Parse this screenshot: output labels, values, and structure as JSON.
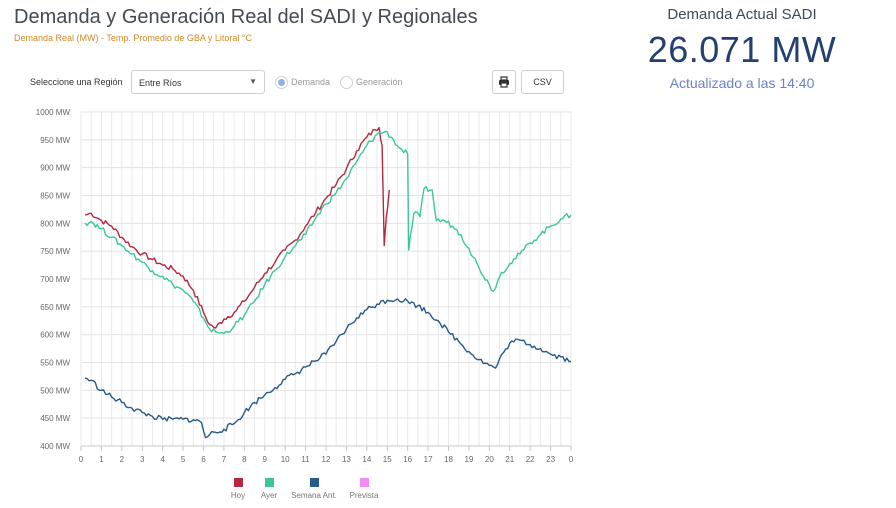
{
  "header": {
    "title": "Demanda y Generación Real del SADI y Regionales",
    "subtitle": "Demanda Real (MW) - Temp. Promedio de GBA y Litoral °C"
  },
  "current": {
    "label": "Demanda Actual SADI",
    "value": "26.071 MW",
    "updated": "Actualizado a las 14:40"
  },
  "controls": {
    "region_label": "Seleccione una Región",
    "region_value": "Entre Ríos",
    "radio_demanda": "Demanda",
    "radio_generacion": "Generación",
    "print_icon": "printer-icon",
    "csv_label": "CSV"
  },
  "chart_data": {
    "type": "line",
    "title": "Demanda y Generación Real del SADI y Regionales",
    "ylim": [
      400,
      1000
    ],
    "yticks": [
      400,
      450,
      500,
      550,
      600,
      650,
      700,
      750,
      800,
      850,
      900,
      950,
      1000
    ],
    "ytick_labels": [
      "400 MW",
      "450 MW",
      "500 MW",
      "550 MW",
      "600 MW",
      "650 MW",
      "700 MW",
      "750 MW",
      "800 MW",
      "850 MW",
      "900 MW",
      "950 MW",
      "1000 MW"
    ],
    "xlim": [
      0,
      24
    ],
    "xticks": [
      0,
      1,
      2,
      3,
      4,
      5,
      6,
      7,
      8,
      9,
      10,
      11,
      12,
      13,
      14,
      15,
      16,
      17,
      18,
      19,
      20,
      21,
      22,
      23,
      24
    ],
    "xtick_labels": [
      "0",
      "1",
      "2",
      "3",
      "4",
      "5",
      "6",
      "7",
      "8",
      "9",
      "10",
      "11",
      "12",
      "13",
      "14",
      "15",
      "16",
      "17",
      "18",
      "19",
      "20",
      "21",
      "22",
      "23",
      "0"
    ],
    "grid": true,
    "legend_position": "bottom",
    "series": [
      {
        "name": "Hoy",
        "color": "#b5283d",
        "points": [
          [
            0.2,
            815
          ],
          [
            0.5,
            818
          ],
          [
            1,
            805
          ],
          [
            1.5,
            795
          ],
          [
            2,
            775
          ],
          [
            2.5,
            758
          ],
          [
            3,
            745
          ],
          [
            3.5,
            735
          ],
          [
            4,
            725
          ],
          [
            4.5,
            718
          ],
          [
            5,
            705
          ],
          [
            5.5,
            680
          ],
          [
            6,
            640
          ],
          [
            6.3,
            618
          ],
          [
            6.6,
            612
          ],
          [
            7,
            628
          ],
          [
            7.5,
            640
          ],
          [
            8,
            660
          ],
          [
            8.5,
            685
          ],
          [
            9,
            710
          ],
          [
            9.5,
            730
          ],
          [
            10,
            752
          ],
          [
            10.5,
            770
          ],
          [
            11,
            795
          ],
          [
            11.5,
            820
          ],
          [
            12,
            845
          ],
          [
            12.5,
            870
          ],
          [
            13,
            898
          ],
          [
            13.5,
            930
          ],
          [
            14,
            955
          ],
          [
            14.4,
            968
          ],
          [
            14.6,
            972
          ],
          [
            14.75,
            940
          ],
          [
            14.85,
            760
          ],
          [
            14.95,
            810
          ],
          [
            15.1,
            860
          ]
        ]
      },
      {
        "name": "Ayer",
        "color": "#3cc79b",
        "points": [
          [
            0.2,
            800
          ],
          [
            0.5,
            803
          ],
          [
            1,
            790
          ],
          [
            1.5,
            775
          ],
          [
            2,
            760
          ],
          [
            2.5,
            745
          ],
          [
            3,
            730
          ],
          [
            3.5,
            715
          ],
          [
            4,
            705
          ],
          [
            4.5,
            690
          ],
          [
            5,
            680
          ],
          [
            5.5,
            660
          ],
          [
            6,
            630
          ],
          [
            6.3,
            610
          ],
          [
            6.6,
            605
          ],
          [
            7,
            602
          ],
          [
            7.5,
            615
          ],
          [
            8,
            635
          ],
          [
            8.5,
            660
          ],
          [
            9,
            690
          ],
          [
            9.5,
            715
          ],
          [
            10,
            740
          ],
          [
            10.5,
            760
          ],
          [
            11,
            780
          ],
          [
            11.5,
            810
          ],
          [
            12,
            835
          ],
          [
            12.5,
            855
          ],
          [
            13,
            880
          ],
          [
            13.5,
            910
          ],
          [
            14,
            940
          ],
          [
            14.5,
            960
          ],
          [
            14.9,
            965
          ],
          [
            15.2,
            955
          ],
          [
            15.6,
            935
          ],
          [
            16,
            925
          ],
          [
            16.05,
            752
          ],
          [
            16.3,
            818
          ],
          [
            16.6,
            812
          ],
          [
            16.8,
            862
          ],
          [
            17.2,
            860
          ],
          [
            17.4,
            805
          ],
          [
            17.8,
            805
          ],
          [
            18.2,
            795
          ],
          [
            18.6,
            780
          ],
          [
            19,
            755
          ],
          [
            19.5,
            720
          ],
          [
            20,
            690
          ],
          [
            20.2,
            678
          ],
          [
            20.6,
            712
          ],
          [
            21,
            728
          ],
          [
            21.5,
            745
          ],
          [
            22,
            765
          ],
          [
            22.5,
            780
          ],
          [
            23,
            795
          ],
          [
            23.5,
            808
          ],
          [
            24,
            815
          ]
        ]
      },
      {
        "name": "Semana Ant.",
        "color": "#265a88",
        "points": [
          [
            0.2,
            522
          ],
          [
            0.5,
            518
          ],
          [
            1,
            500
          ],
          [
            1.5,
            488
          ],
          [
            2,
            478
          ],
          [
            2.5,
            468
          ],
          [
            3,
            460
          ],
          [
            3.5,
            453
          ],
          [
            4,
            448
          ],
          [
            4.5,
            448
          ],
          [
            5,
            448
          ],
          [
            5.5,
            447
          ],
          [
            5.9,
            442
          ],
          [
            6.1,
            415
          ],
          [
            6.5,
            425
          ],
          [
            7,
            430
          ],
          [
            7.5,
            440
          ],
          [
            8,
            460
          ],
          [
            8.5,
            478
          ],
          [
            9,
            492
          ],
          [
            9.5,
            505
          ],
          [
            10,
            520
          ],
          [
            10.5,
            530
          ],
          [
            11,
            542
          ],
          [
            11.5,
            553
          ],
          [
            12,
            565
          ],
          [
            12.5,
            588
          ],
          [
            13,
            610
          ],
          [
            13.5,
            630
          ],
          [
            14,
            645
          ],
          [
            14.5,
            655
          ],
          [
            15,
            662
          ],
          [
            15.5,
            664
          ],
          [
            16,
            660
          ],
          [
            16.5,
            652
          ],
          [
            17,
            640
          ],
          [
            17.5,
            625
          ],
          [
            18,
            605
          ],
          [
            18.5,
            588
          ],
          [
            19,
            570
          ],
          [
            19.5,
            555
          ],
          [
            20,
            545
          ],
          [
            20.3,
            540
          ],
          [
            20.7,
            568
          ],
          [
            21,
            585
          ],
          [
            21.5,
            590
          ],
          [
            22,
            582
          ],
          [
            22.5,
            575
          ],
          [
            23,
            565
          ],
          [
            23.5,
            560
          ],
          [
            24,
            552
          ]
        ]
      },
      {
        "name": "Prevista",
        "color": "#f28cf0",
        "points": []
      }
    ]
  }
}
